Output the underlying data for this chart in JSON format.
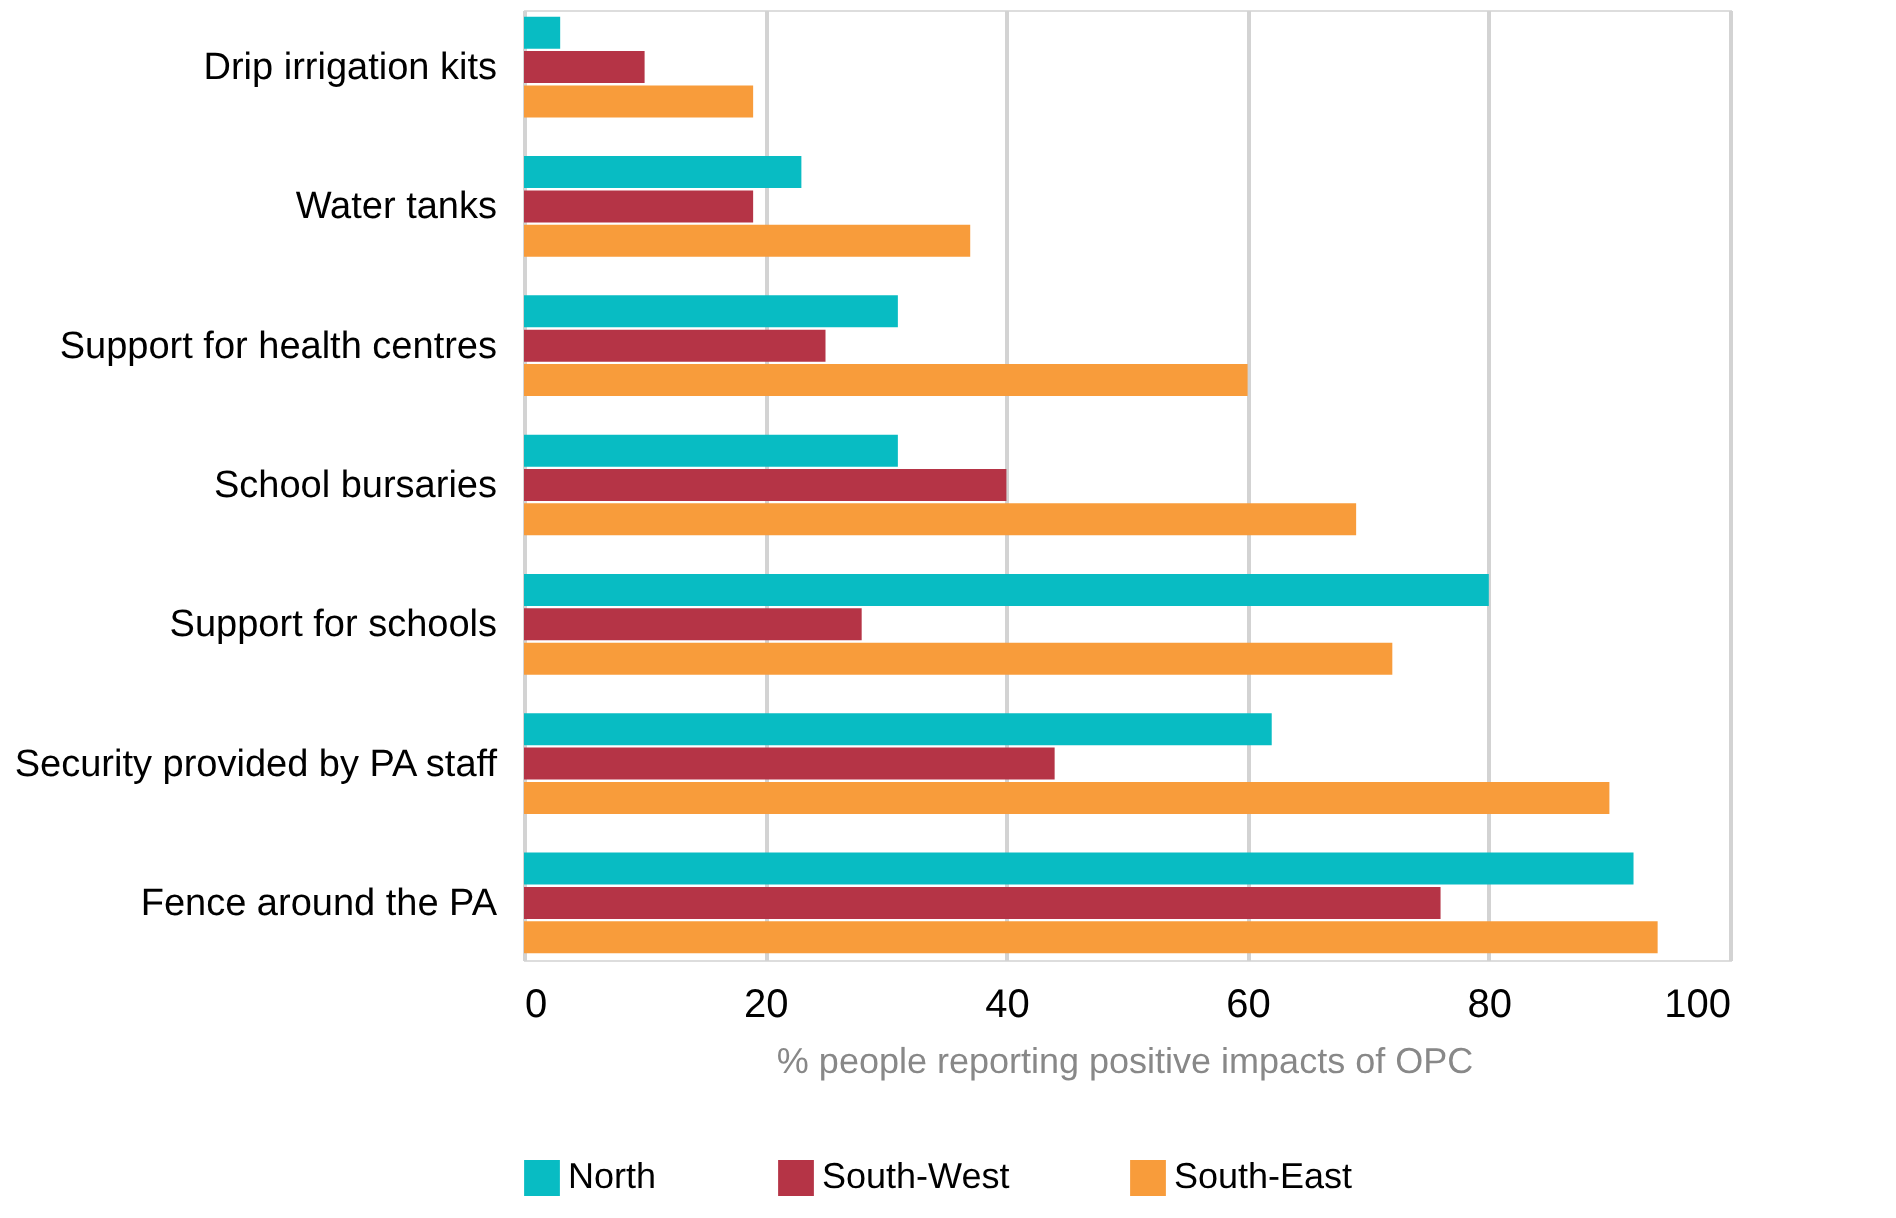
{
  "chart_data": {
    "type": "bar",
    "orientation": "horizontal",
    "xlabel": "% people reporting positive impacts of OPC",
    "categories": [
      "Drip irrigation kits",
      "Water tanks",
      "Support for health centres",
      "School bursaries",
      "Support for schools",
      "Security provided by PA staff",
      "Fence around the PA"
    ],
    "series": [
      {
        "name": "North",
        "color": "#08bcc3",
        "values": [
          3,
          23,
          31,
          31,
          80,
          62,
          92
        ]
      },
      {
        "name": "South-West",
        "color": "#b53446",
        "values": [
          10,
          19,
          25,
          40,
          28,
          44,
          76
        ]
      },
      {
        "name": "South-East",
        "color": "#f89c3b",
        "values": [
          19,
          37,
          60,
          69,
          72,
          90,
          94
        ]
      }
    ],
    "xlim": [
      0,
      100
    ],
    "xticks": [
      0,
      20,
      40,
      60,
      80,
      100
    ],
    "grid": "x",
    "legend": "bottom"
  }
}
